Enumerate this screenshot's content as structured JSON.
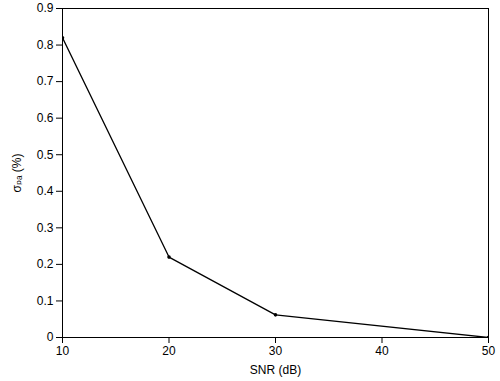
{
  "chart_data": {
    "type": "line",
    "x_label": "SNR (dB)",
    "y_label": "σₚₐ (%)",
    "x": [
      10,
      20,
      30,
      50
    ],
    "values": [
      0.82,
      0.22,
      0.062,
      0.0
    ],
    "color": "#000000",
    "marker": "dot",
    "xlim": [
      10,
      50
    ],
    "xticks": [
      10,
      20,
      30,
      40,
      50
    ],
    "ylim": [
      0,
      0.9
    ],
    "yticks": [
      0,
      0.1,
      0.2,
      0.3,
      0.4,
      0.5,
      0.6,
      0.7,
      0.8,
      0.9
    ],
    "grid": false
  }
}
